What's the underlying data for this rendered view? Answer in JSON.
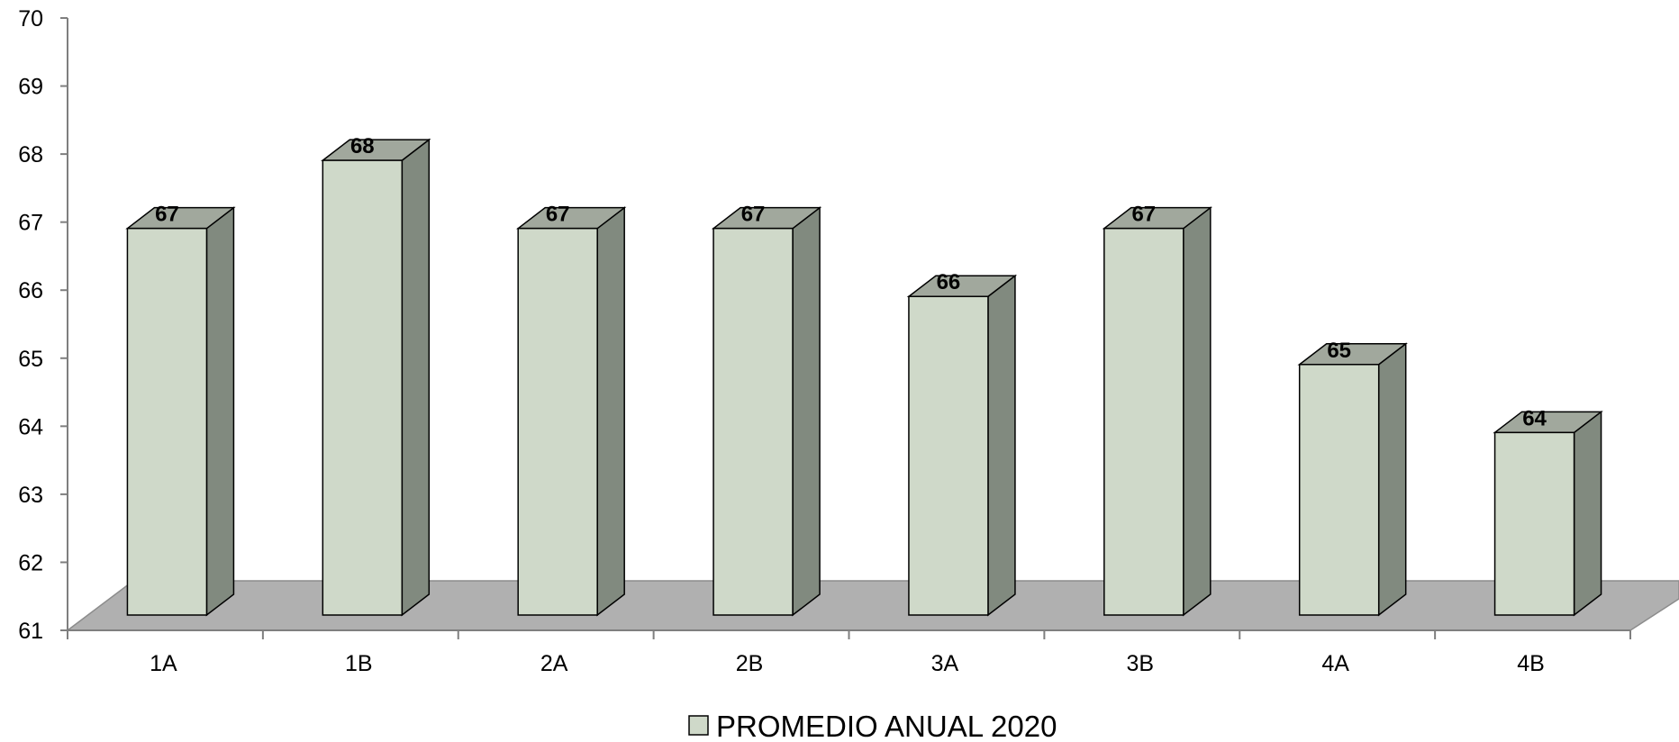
{
  "chart_data": {
    "type": "bar",
    "style": "3d-column",
    "categories": [
      "1A",
      "1B",
      "2A",
      "2B",
      "3A",
      "3B",
      "4A",
      "4B"
    ],
    "series": [
      {
        "name": "PROMEDIO ANUAL 2020",
        "values": [
          67,
          68,
          67,
          67,
          66,
          67,
          65,
          64
        ]
      }
    ],
    "data_labels": [
      "67",
      "68",
      "67",
      "67",
      "66",
      "67",
      "65",
      "64"
    ],
    "ylim": [
      61,
      70
    ],
    "yticks": [
      "61",
      "62",
      "63",
      "64",
      "65",
      "66",
      "67",
      "68",
      "69",
      "70"
    ],
    "title": "",
    "xlabel": "",
    "ylabel": "",
    "grid": false,
    "legend": {
      "position": "bottom",
      "entries": [
        "PROMEDIO ANUAL 2020"
      ]
    },
    "colors": {
      "bar_front": "#CFD9C9",
      "bar_side": "#818A7F",
      "bar_top": "#A1A89D",
      "floor": "#B0B0B0",
      "outline": "#000000",
      "axis": "#7F7F7F"
    }
  }
}
